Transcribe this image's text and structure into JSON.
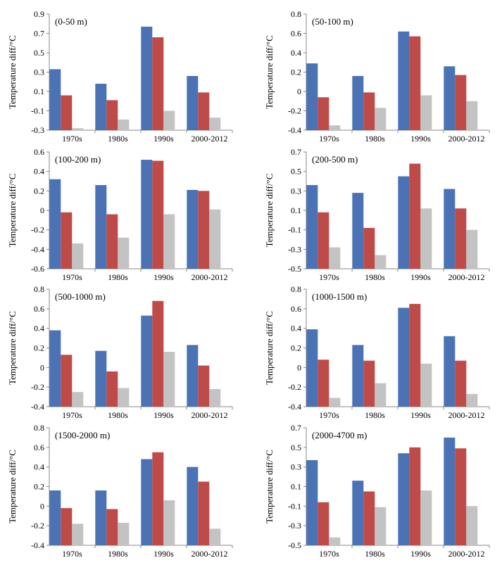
{
  "figure": {
    "categories": [
      "1970s",
      "1980s",
      "1990s",
      "2000-2012"
    ],
    "ylabel": "Temperature diff/°C",
    "series_colors": [
      "#4a72b4",
      "#be4b48",
      "#c3c3c3"
    ]
  },
  "chart_data": [
    {
      "type": "bar",
      "title": "(0-50 m)",
      "ylabel": "Temperature diff/°C",
      "categories": [
        "1970s",
        "1980s",
        "1990s",
        "2000-2012"
      ],
      "ylim": [
        -0.3,
        0.9
      ],
      "yticks": [
        -0.3,
        -0.1,
        0.1,
        0.3,
        0.5,
        0.7,
        0.9
      ],
      "ytick_labels": [
        "-0.3",
        "-0.1",
        "0.1",
        "0.3",
        "0.5",
        "0.7",
        "0.9"
      ],
      "series": [
        {
          "values": [
            0.33,
            0.18,
            0.77,
            0.26
          ]
        },
        {
          "values": [
            0.06,
            0.01,
            0.66,
            0.09
          ]
        },
        {
          "values": [
            -0.28,
            -0.19,
            -0.1,
            -0.17
          ]
        }
      ]
    },
    {
      "type": "bar",
      "title": "(50-100 m)",
      "ylabel": "Temperature diff/°C",
      "categories": [
        "1970s",
        "1980s",
        "1990s",
        "2000-2012"
      ],
      "ylim": [
        -0.4,
        0.8
      ],
      "yticks": [
        -0.4,
        -0.2,
        0,
        0.2,
        0.4,
        0.6,
        0.8
      ],
      "ytick_labels": [
        "-0.4",
        "-0.2",
        "0",
        "0.2",
        "0.4",
        "0.6",
        "0.8"
      ],
      "series": [
        {
          "values": [
            0.29,
            0.16,
            0.62,
            0.26
          ]
        },
        {
          "values": [
            -0.06,
            -0.01,
            0.57,
            0.17
          ]
        },
        {
          "values": [
            -0.35,
            -0.17,
            -0.04,
            -0.1
          ]
        }
      ]
    },
    {
      "type": "bar",
      "title": "(100-200 m)",
      "ylabel": "Temperature diff/°C",
      "categories": [
        "1970s",
        "1980s",
        "1990s",
        "2000-2012"
      ],
      "ylim": [
        -0.6,
        0.6
      ],
      "yticks": [
        -0.6,
        -0.4,
        -0.2,
        0,
        0.2,
        0.4,
        0.6
      ],
      "ytick_labels": [
        "-0.6",
        "-0.4",
        "-0.2",
        "0",
        "0.2",
        "0.4",
        "0.6"
      ],
      "series": [
        {
          "values": [
            0.32,
            0.26,
            0.52,
            0.21
          ]
        },
        {
          "values": [
            -0.02,
            -0.04,
            0.51,
            0.2
          ]
        },
        {
          "values": [
            -0.34,
            -0.28,
            -0.04,
            0.01
          ]
        }
      ]
    },
    {
      "type": "bar",
      "title": "(200-500 m)",
      "ylabel": "Temperature diff/°C",
      "categories": [
        "1970s",
        "1980s",
        "1990s",
        "2000-2012"
      ],
      "ylim": [
        -0.5,
        0.7
      ],
      "yticks": [
        -0.5,
        -0.3,
        -0.1,
        0.1,
        0.3,
        0.5,
        0.7
      ],
      "ytick_labels": [
        "-0.5",
        "-0.3",
        "-0.1",
        "0.1",
        "0.3",
        "0.5",
        "0.7"
      ],
      "series": [
        {
          "values": [
            0.36,
            0.28,
            0.45,
            0.32
          ]
        },
        {
          "values": [
            0.08,
            -0.08,
            0.58,
            0.12
          ]
        },
        {
          "values": [
            -0.28,
            -0.36,
            0.12,
            -0.1
          ]
        }
      ]
    },
    {
      "type": "bar",
      "title": "(500-1000 m)",
      "ylabel": "Temperature diff/°C",
      "categories": [
        "1970s",
        "1980s",
        "1990s",
        "2000-2012"
      ],
      "ylim": [
        -0.4,
        0.8
      ],
      "yticks": [
        -0.4,
        -0.2,
        0,
        0.2,
        0.4,
        0.6,
        0.8
      ],
      "ytick_labels": [
        "-0.4",
        "-0.2",
        "0",
        "0.2",
        "0.4",
        "0.6",
        "0.8"
      ],
      "series": [
        {
          "values": [
            0.38,
            0.17,
            0.53,
            0.23
          ]
        },
        {
          "values": [
            0.13,
            -0.04,
            0.68,
            0.02
          ]
        },
        {
          "values": [
            -0.25,
            -0.21,
            0.16,
            -0.22
          ]
        }
      ]
    },
    {
      "type": "bar",
      "title": "(1000-1500 m)",
      "ylabel": "Temperature diff/°C",
      "categories": [
        "1970s",
        "1980s",
        "1990s",
        "2000-2012"
      ],
      "ylim": [
        -0.4,
        0.8
      ],
      "yticks": [
        -0.4,
        -0.2,
        0,
        0.2,
        0.4,
        0.6,
        0.8
      ],
      "ytick_labels": [
        "-0.4",
        "-0.2",
        "0",
        "0.2",
        "0.4",
        "0.6",
        "0.8"
      ],
      "series": [
        {
          "values": [
            0.39,
            0.23,
            0.61,
            0.32
          ]
        },
        {
          "values": [
            0.08,
            0.07,
            0.65,
            0.07
          ]
        },
        {
          "values": [
            -0.31,
            -0.16,
            0.04,
            -0.27
          ]
        }
      ]
    },
    {
      "type": "bar",
      "title": "(1500-2000 m)",
      "ylabel": "Temperature diff/°C",
      "categories": [
        "1970s",
        "1980s",
        "1990s",
        "2000-2012"
      ],
      "ylim": [
        -0.4,
        0.8
      ],
      "yticks": [
        -0.4,
        -0.2,
        0,
        0.2,
        0.4,
        0.6,
        0.8
      ],
      "ytick_labels": [
        "-0.4",
        "-0.2",
        "0",
        "0.2",
        "0.4",
        "0.6",
        "0.8"
      ],
      "series": [
        {
          "values": [
            0.16,
            0.16,
            0.48,
            0.4
          ]
        },
        {
          "values": [
            -0.02,
            -0.03,
            0.55,
            0.25
          ]
        },
        {
          "values": [
            -0.18,
            -0.17,
            0.06,
            -0.23
          ]
        }
      ]
    },
    {
      "type": "bar",
      "title": "(2000-4700 m)",
      "ylabel": "Temperature diff/°C",
      "categories": [
        "1970s",
        "1980s",
        "1990s",
        "2000-2012"
      ],
      "ylim": [
        -0.5,
        0.7
      ],
      "yticks": [
        -0.5,
        -0.3,
        -0.1,
        0.1,
        0.3,
        0.5,
        0.7
      ],
      "ytick_labels": [
        "-0.5",
        "-0.3",
        "-0.1",
        "0.1",
        "0.3",
        "0.5",
        "0.7"
      ],
      "series": [
        {
          "values": [
            0.37,
            0.16,
            0.44,
            0.6
          ]
        },
        {
          "values": [
            -0.06,
            0.05,
            0.5,
            0.49
          ]
        },
        {
          "values": [
            -0.42,
            -0.11,
            0.06,
            -0.1
          ]
        }
      ]
    }
  ]
}
